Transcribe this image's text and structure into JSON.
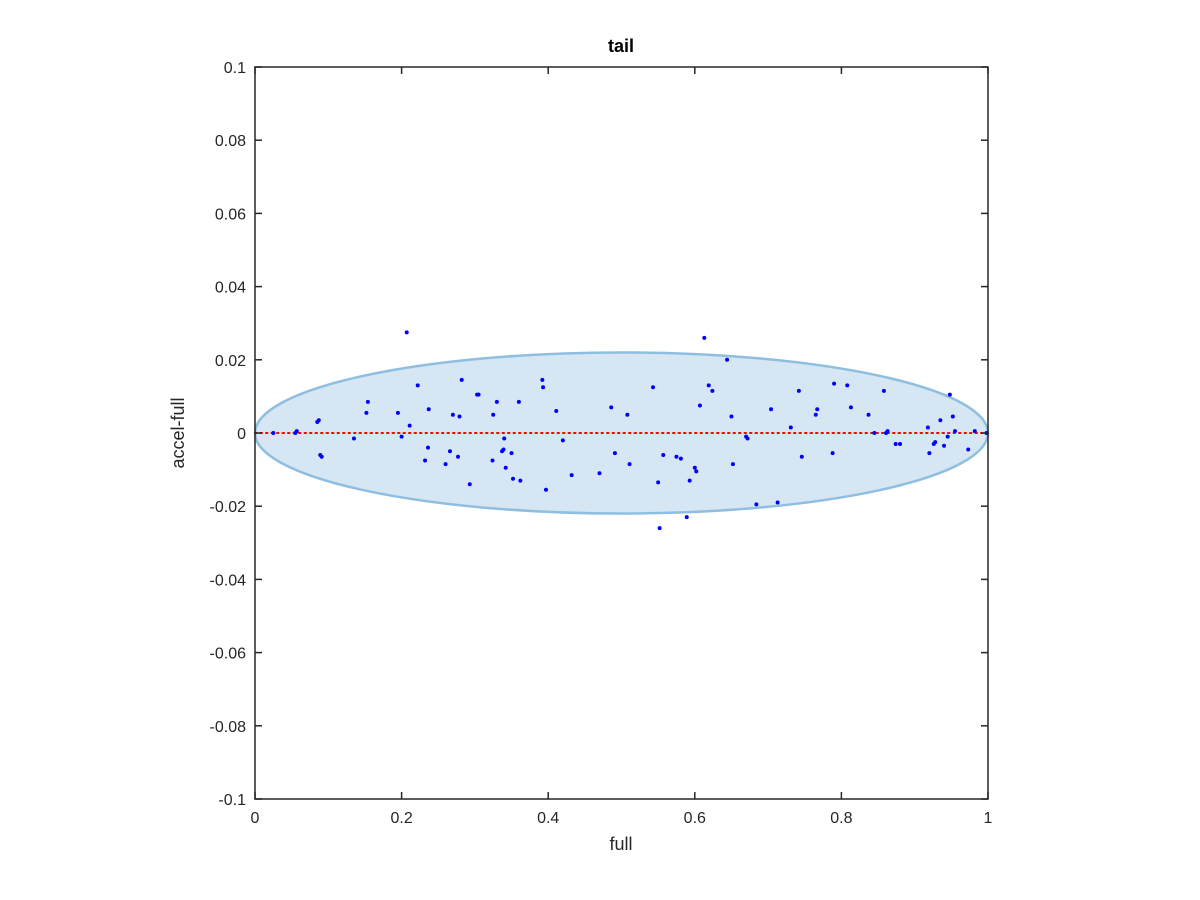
{
  "chart_data": {
    "type": "scatter",
    "title": "tail",
    "xlabel": "full",
    "ylabel": "accel-full",
    "xlim": [
      0,
      1
    ],
    "ylim": [
      -0.1,
      0.1
    ],
    "x_ticks": [
      0,
      0.2,
      0.4,
      0.6,
      0.8,
      1
    ],
    "x_tick_labels": [
      "0",
      "0.2",
      "0.4",
      "0.6",
      "0.8",
      "1"
    ],
    "y_ticks": [
      -0.1,
      -0.08,
      -0.06,
      -0.04,
      -0.02,
      0,
      0.02,
      0.04,
      0.06,
      0.08,
      0.1
    ],
    "y_tick_labels": [
      "-0.1",
      "-0.08",
      "-0.06",
      "-0.04",
      "-0.02",
      "0",
      "0.02",
      "0.04",
      "0.06",
      "0.08",
      "0.1"
    ],
    "grid": false,
    "reference_line": {
      "y": 0,
      "style": "dotted",
      "color": "#ff0000"
    },
    "ellipse": {
      "cx": 0.5,
      "cy": 0,
      "rx": 0.5,
      "ry": 0.022,
      "fill": "#d6e6f3",
      "stroke": "#8fbfe0"
    },
    "series": [
      {
        "marker_color": "#0000ff",
        "points": [
          [
            0.025,
            0.0
          ],
          [
            0.055,
            0.0
          ],
          [
            0.057,
            0.0005
          ],
          [
            0.085,
            0.003
          ],
          [
            0.087,
            0.0035
          ],
          [
            0.089,
            -0.006
          ],
          [
            0.091,
            -0.0065
          ],
          [
            0.135,
            -0.0015
          ],
          [
            0.152,
            0.0055
          ],
          [
            0.154,
            0.0085
          ],
          [
            0.195,
            0.0055
          ],
          [
            0.2,
            -0.001
          ],
          [
            0.207,
            0.0275
          ],
          [
            0.211,
            0.002
          ],
          [
            0.222,
            0.013
          ],
          [
            0.232,
            -0.0075
          ],
          [
            0.236,
            -0.004
          ],
          [
            0.237,
            0.0065
          ],
          [
            0.26,
            -0.0085
          ],
          [
            0.266,
            -0.005
          ],
          [
            0.27,
            0.005
          ],
          [
            0.277,
            -0.0065
          ],
          [
            0.279,
            0.0045
          ],
          [
            0.282,
            0.0145
          ],
          [
            0.293,
            -0.014
          ],
          [
            0.303,
            0.0105
          ],
          [
            0.305,
            0.0105
          ],
          [
            0.324,
            -0.0075
          ],
          [
            0.325,
            0.005
          ],
          [
            0.33,
            0.0085
          ],
          [
            0.337,
            -0.005
          ],
          [
            0.339,
            -0.0045
          ],
          [
            0.34,
            -0.0015
          ],
          [
            0.342,
            -0.0095
          ],
          [
            0.35,
            -0.0055
          ],
          [
            0.352,
            -0.0125
          ],
          [
            0.36,
            0.0085
          ],
          [
            0.362,
            -0.013
          ],
          [
            0.392,
            0.0145
          ],
          [
            0.393,
            0.0125
          ],
          [
            0.397,
            -0.0155
          ],
          [
            0.411,
            0.006
          ],
          [
            0.42,
            -0.002
          ],
          [
            0.432,
            -0.0115
          ],
          [
            0.47,
            -0.011
          ],
          [
            0.486,
            0.007
          ],
          [
            0.491,
            -0.0055
          ],
          [
            0.508,
            0.005
          ],
          [
            0.511,
            -0.0085
          ],
          [
            0.543,
            0.0125
          ],
          [
            0.55,
            -0.0135
          ],
          [
            0.552,
            -0.026
          ],
          [
            0.557,
            -0.006
          ],
          [
            0.575,
            -0.0065
          ],
          [
            0.581,
            -0.007
          ],
          [
            0.589,
            -0.023
          ],
          [
            0.593,
            -0.013
          ],
          [
            0.6,
            -0.0095
          ],
          [
            0.602,
            -0.0105
          ],
          [
            0.607,
            0.0075
          ],
          [
            0.613,
            0.026
          ],
          [
            0.619,
            0.013
          ],
          [
            0.624,
            0.0115
          ],
          [
            0.644,
            0.02
          ],
          [
            0.65,
            0.0045
          ],
          [
            0.652,
            -0.0085
          ],
          [
            0.67,
            -0.001
          ],
          [
            0.672,
            -0.0015
          ],
          [
            0.684,
            -0.0195
          ],
          [
            0.704,
            0.0065
          ],
          [
            0.713,
            -0.019
          ],
          [
            0.731,
            0.0015
          ],
          [
            0.742,
            0.0115
          ],
          [
            0.746,
            -0.0065
          ],
          [
            0.765,
            0.005
          ],
          [
            0.767,
            0.0065
          ],
          [
            0.788,
            -0.0055
          ],
          [
            0.79,
            0.0135
          ],
          [
            0.808,
            0.013
          ],
          [
            0.813,
            0.007
          ],
          [
            0.837,
            0.005
          ],
          [
            0.845,
            0.0
          ],
          [
            0.858,
            0.0115
          ],
          [
            0.861,
            0.0
          ],
          [
            0.863,
            0.0005
          ],
          [
            0.874,
            -0.003
          ],
          [
            0.88,
            -0.003
          ],
          [
            0.918,
            0.0015
          ],
          [
            0.92,
            -0.0055
          ],
          [
            0.926,
            -0.003
          ],
          [
            0.928,
            -0.0025
          ],
          [
            0.935,
            0.0035
          ],
          [
            0.94,
            -0.0035
          ],
          [
            0.945,
            -0.001
          ],
          [
            0.948,
            0.0105
          ],
          [
            0.952,
            0.0045
          ],
          [
            0.955,
            0.0005
          ],
          [
            0.973,
            -0.0045
          ],
          [
            0.982,
            0.0005
          ],
          [
            0.998,
            0.0
          ]
        ]
      }
    ]
  }
}
